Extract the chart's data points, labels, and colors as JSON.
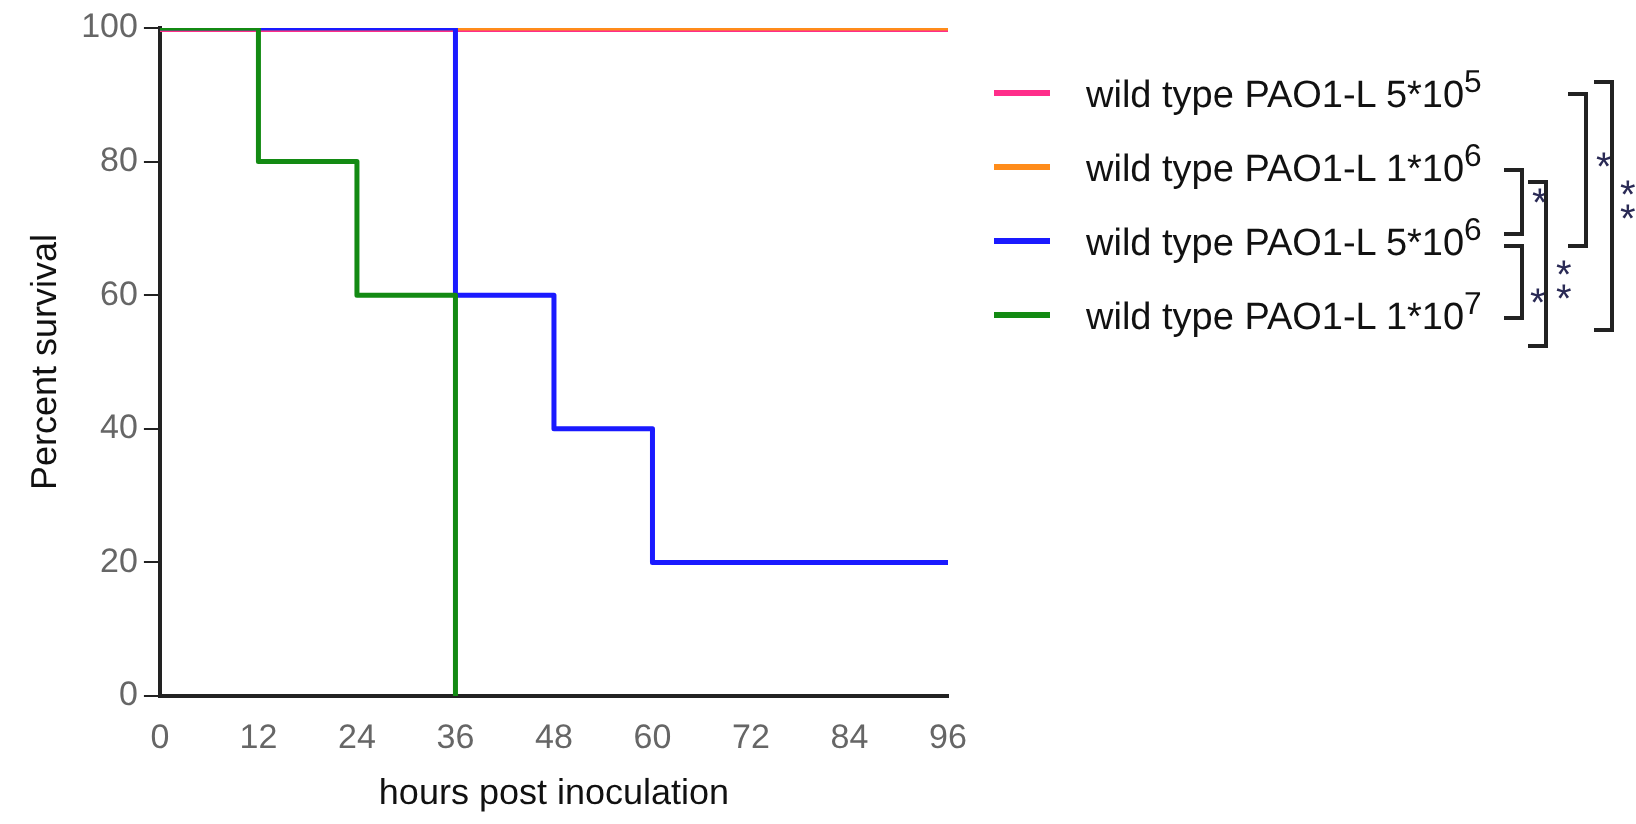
{
  "chart_data": {
    "type": "step",
    "xlabel": "hours post inoculation",
    "ylabel": "Percent survival",
    "xlim": [
      0,
      96
    ],
    "xticks": [
      0,
      12,
      24,
      36,
      48,
      60,
      72,
      84,
      96
    ],
    "ylim": [
      0,
      100
    ],
    "yticks": [
      0,
      20,
      40,
      60,
      80,
      100
    ],
    "grid": false,
    "legend": "right",
    "marker": "none",
    "line_style": "solid",
    "series": [
      {
        "name": "wild type PAO1-L 5*10$^{5}$",
        "color": "#ff2d8a",
        "x": [
          0,
          96
        ],
        "values": [
          100,
          100
        ]
      },
      {
        "name": "wild type PAO1-L 1*10$^{6}$",
        "color": "#ff8c1a",
        "x": [
          0,
          96
        ],
        "values": [
          100,
          100
        ]
      },
      {
        "name": "wild type PAO1-L 5*10$^{6}$",
        "color": "#1a1aff",
        "x": [
          0,
          36,
          48,
          60,
          96
        ],
        "values": [
          100,
          60,
          40,
          20,
          20
        ]
      },
      {
        "name": "wild type PAO1-L 1*10$^{7}$",
        "color": "#138a13",
        "x": [
          0,
          12,
          24,
          36
        ],
        "values": [
          100,
          80,
          60,
          0
        ]
      }
    ],
    "annotations": [
      "*",
      "*",
      "**",
      "*",
      "**"
    ]
  }
}
